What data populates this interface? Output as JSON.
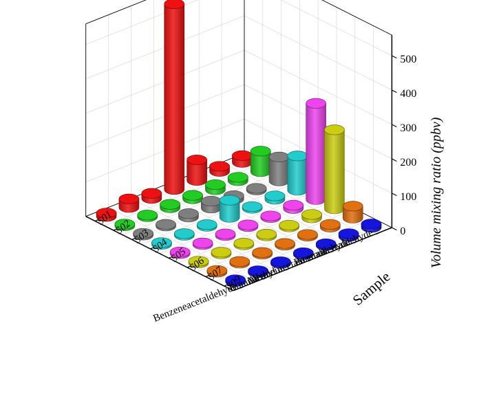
{
  "chart_data": {
    "type": "bar3d",
    "title": "",
    "zlabel": "Volume mixing ratio (ppbv)",
    "ylabel": "Sample",
    "xlabel": "",
    "zlim": [
      0,
      560
    ],
    "z_ticks": [
      "0",
      "100",
      "200",
      "300",
      "400",
      "500"
    ],
    "z_tick_values": [
      0,
      100,
      200,
      300,
      400,
      500
    ],
    "grid": true,
    "compounds": [
      "Acetaldehyde",
      "Formaldehyde",
      "Acetone",
      "Methyl acetate",
      "Acrolein",
      "Butanal",
      "Benzeneacetaldehyde"
    ],
    "samples": [
      "S01",
      "S02",
      "S03",
      "S04",
      "S05",
      "S06",
      "S07",
      "S09"
    ],
    "sample_labels_shown": [
      "S01",
      "S02",
      "S03",
      "S04",
      "S05",
      "S06",
      "S07",
      "S09"
    ],
    "sample_colors": [
      "#ee1111",
      "#22cc22",
      "#7f7f7f",
      "#22cccc",
      "#ee44ee",
      "#cccc11",
      "#e07010",
      "#1515dd"
    ],
    "values": [
      [
        20,
        60,
        70,
        100,
        280,
        230,
        35,
        10
      ],
      [
        15,
        10,
        5,
        10,
        10,
        10,
        8,
        8
      ],
      [
        60,
        15,
        10,
        5,
        5,
        5,
        5,
        5
      ],
      [
        540,
        10,
        20,
        50,
        5,
        5,
        5,
        5
      ],
      [
        15,
        10,
        10,
        5,
        5,
        5,
        5,
        5
      ],
      [
        25,
        5,
        5,
        5,
        5,
        5,
        5,
        5
      ],
      [
        10,
        5,
        5,
        5,
        5,
        5,
        5,
        5
      ]
    ]
  }
}
